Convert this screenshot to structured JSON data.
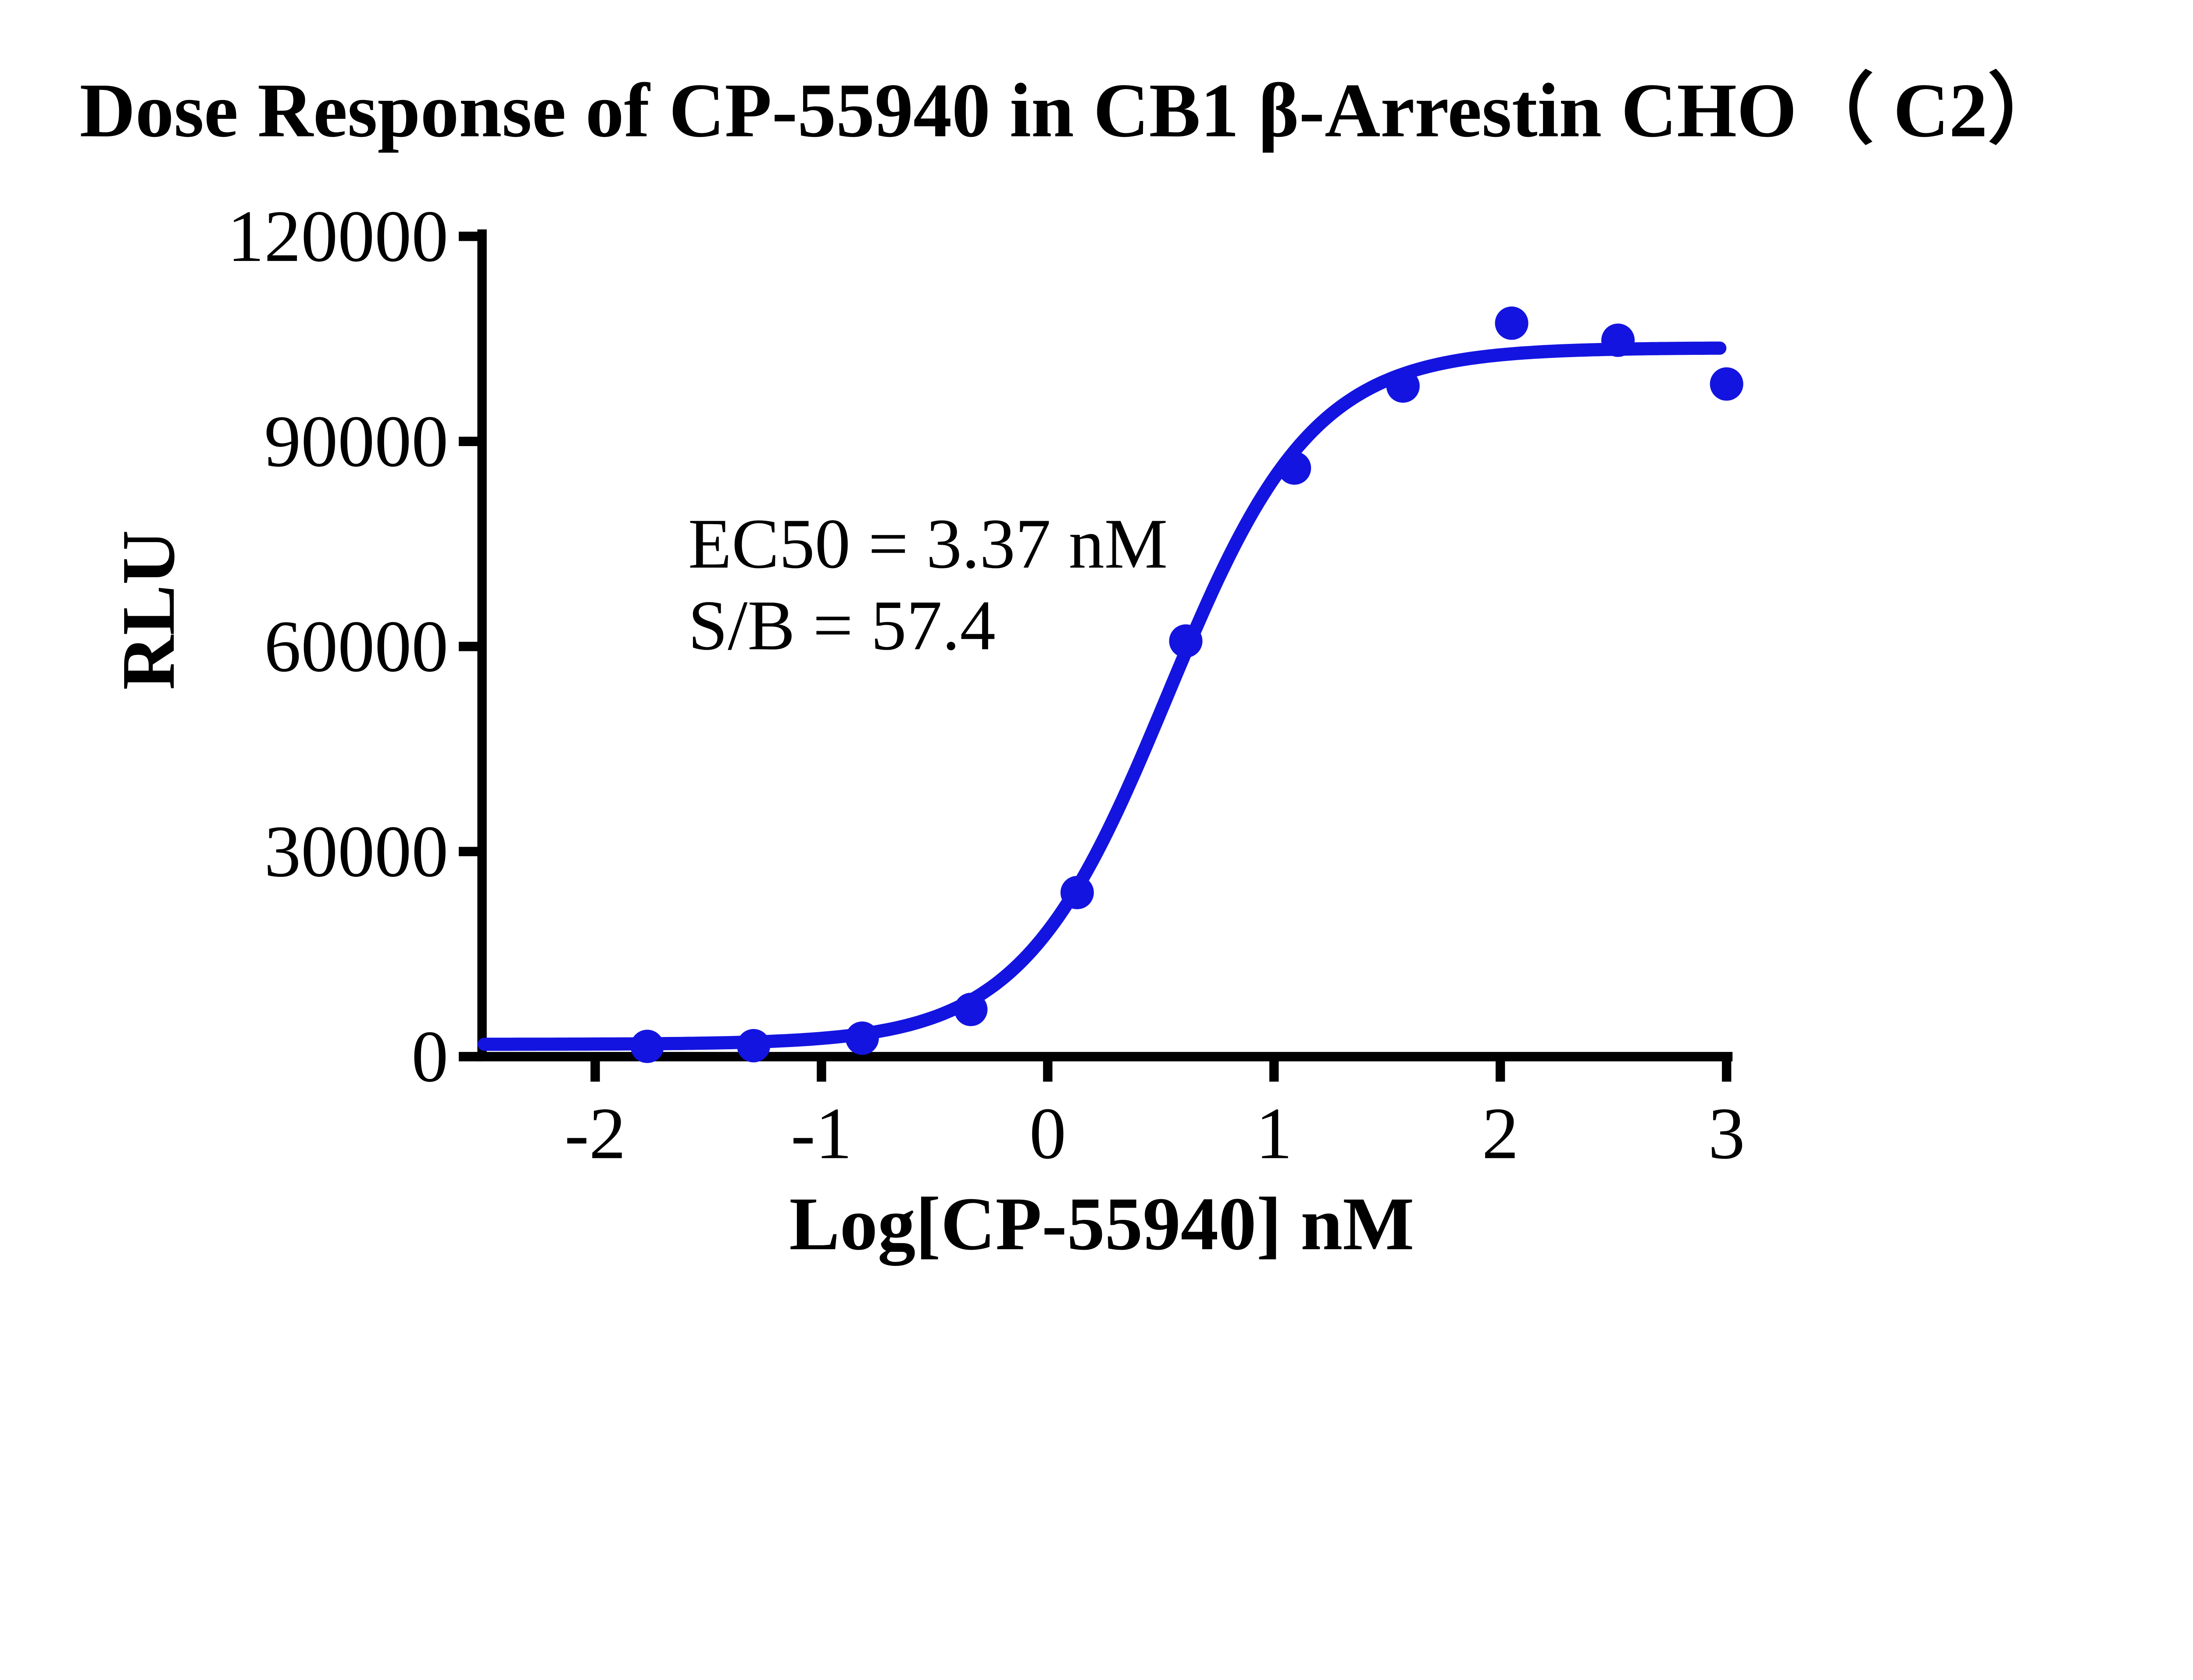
{
  "title": "Dose Response of CP-55940  in CB1 β-Arrestin CHO（ C2）",
  "annotation": {
    "ec50_label": "EC50 = 3.37 nM",
    "sb_label": "S/B = 57.4"
  },
  "colors": {
    "curve": "#1414e0",
    "points": "#1414e0",
    "axis": "#000000",
    "background": "#ffffff"
  },
  "chart_data": {
    "type": "scatter",
    "title": "Dose Response of CP-55940  in CB1 β-Arrestin CHO（ C2）",
    "xlabel": "Log[CP-55940] nM",
    "ylabel": "RLU",
    "xlim": [
      -2.5,
      3
    ],
    "ylim": [
      0,
      120000
    ],
    "x_ticks": [
      -2,
      -1,
      0,
      1,
      2,
      3
    ],
    "y_ticks": [
      0,
      30000,
      60000,
      90000,
      120000
    ],
    "grid": false,
    "legend": "none",
    "series": [
      {
        "name": "CP-55940",
        "color": "#1414e0",
        "x": [
          -1.77,
          -1.3,
          -0.82,
          -0.34,
          0.13,
          0.61,
          1.09,
          1.57,
          2.05,
          2.52,
          3.0
        ],
        "y": [
          1500,
          1600,
          2700,
          6900,
          24000,
          60800,
          86100,
          98100,
          107300,
          104800,
          98400
        ]
      }
    ],
    "fit_curve": {
      "model": "4PL-sigmoid",
      "bottom": 1800,
      "top": 103700,
      "log_ec50": 0.528,
      "hill": 1.35,
      "x_start": -2.49,
      "x_end": 2.97
    },
    "annotations": [
      "EC50 = 3.37 nM",
      "S/B = 57.4"
    ]
  }
}
